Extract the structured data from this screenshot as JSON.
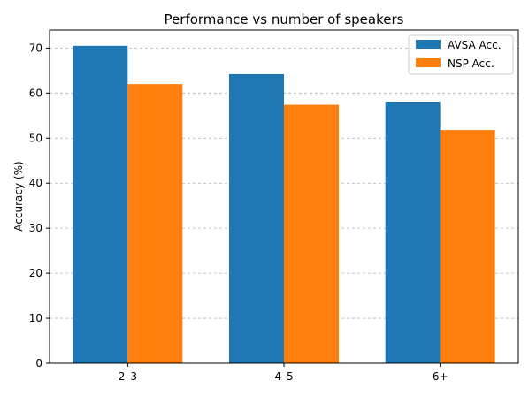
{
  "chart_data": {
    "type": "bar",
    "title": "Performance vs number of speakers",
    "xlabel": "",
    "ylabel": "Accuracy (%)",
    "categories": [
      "2–3",
      "4–5",
      "6+"
    ],
    "series": [
      {
        "name": "AVSA Acc.",
        "color": "#1f77b4",
        "values": [
          70.5,
          64.2,
          58.1
        ]
      },
      {
        "name": "NSP Acc.",
        "color": "#ff7f0e",
        "values": [
          62.0,
          57.4,
          51.8
        ]
      }
    ],
    "ylim": [
      0,
      74
    ],
    "yticks": [
      0,
      10,
      20,
      30,
      40,
      50,
      60,
      70
    ],
    "grid": "y-dashed",
    "legend": "top-right"
  }
}
